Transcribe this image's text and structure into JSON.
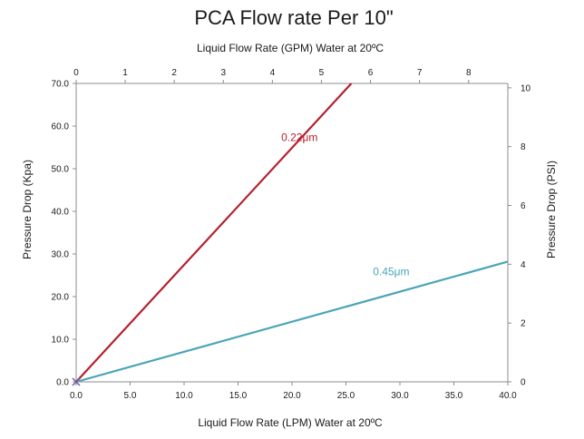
{
  "chart_data": {
    "type": "line",
    "title": "PCA Flow rate Per 10\"",
    "xlabel": "Liquid Flow Rate (LPM) Water at 20ºC",
    "x2label": "Liquid Flow Rate (GPM) Water at 20ºC",
    "ylabel": "Pressure Drop (Kpa)",
    "y2label": "Pressure Drop (PSI)",
    "xlim": [
      0,
      40
    ],
    "ylim": [
      0,
      70
    ],
    "x2lim": [
      0,
      8.8
    ],
    "y2lim": [
      0,
      10.15
    ],
    "grid": false,
    "x_ticks": [
      "0.0",
      "5.0",
      "10.0",
      "15.0",
      "20.0",
      "25.0",
      "30.0",
      "35.0",
      "40.0"
    ],
    "y_ticks": [
      "0.0",
      "10.0",
      "20.0",
      "30.0",
      "40.0",
      "50.0",
      "60.0",
      "70.0"
    ],
    "x2_ticks": [
      "0",
      "1",
      "2",
      "3",
      "4",
      "5",
      "6",
      "7",
      "8"
    ],
    "y2_ticks": [
      "0",
      "2",
      "4",
      "6",
      "8",
      "10"
    ],
    "series": [
      {
        "name": "0.22μm",
        "color": "#b5202e",
        "x": [
          0,
          25.5
        ],
        "y": [
          0,
          70
        ],
        "label_x": 19.0,
        "label_y": 56.5
      },
      {
        "name": "0.45μm",
        "color": "#4aa5b8",
        "x": [
          0,
          40
        ],
        "y": [
          0,
          28.2
        ],
        "label_x": 27.5,
        "label_y": 25.0
      }
    ]
  }
}
